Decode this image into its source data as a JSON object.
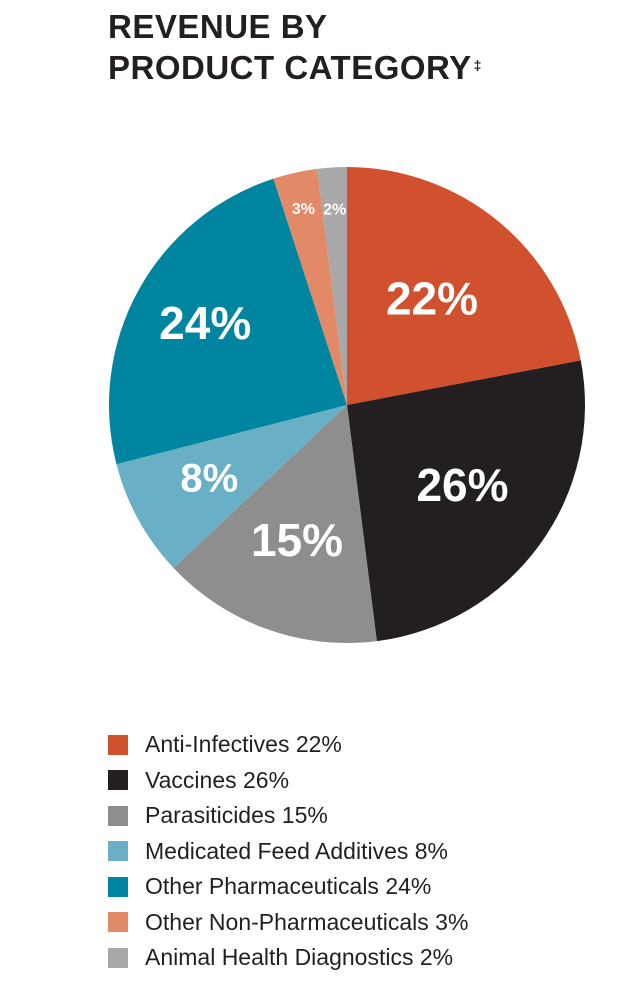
{
  "title": {
    "line1": "REVENUE BY",
    "line2": "PRODUCT CATEGORY",
    "mark": "‡"
  },
  "chart_data": {
    "type": "pie",
    "title": "REVENUE BY PRODUCT CATEGORY‡",
    "categories": [
      "Anti-Infectives",
      "Vaccines",
      "Parasiticides",
      "Medicated Feed Additives",
      "Other Pharmaceuticals",
      "Other Non-Pharmaceuticals",
      "Animal Health Diagnostics"
    ],
    "values": [
      22,
      26,
      15,
      8,
      24,
      3,
      2
    ],
    "slice_labels": [
      "22%",
      "26%",
      "15%",
      "8%",
      "24%",
      "3%",
      "2%"
    ],
    "colors": [
      "#d1502e",
      "#231f20",
      "#8e8e8e",
      "#69afc6",
      "#0085a1",
      "#e28a67",
      "#a8a8a8"
    ],
    "legend_placement": "bottom",
    "direction": "clockwise from top"
  },
  "legend": [
    {
      "label": "Anti-Infectives 22%",
      "color": "#d1502e"
    },
    {
      "label": "Vaccines 26%",
      "color": "#231f20"
    },
    {
      "label": "Parasiticides 15%",
      "color": "#8e8e8e"
    },
    {
      "label": "Medicated Feed Additives 8%",
      "color": "#69afc6"
    },
    {
      "label": "Other Pharmaceuticals 24%",
      "color": "#0085a1"
    },
    {
      "label": "Other Non-Pharmaceuticals 3%",
      "color": "#e28a67"
    },
    {
      "label": "Animal Health Diagnostics 2%",
      "color": "#a8a8a8"
    }
  ]
}
